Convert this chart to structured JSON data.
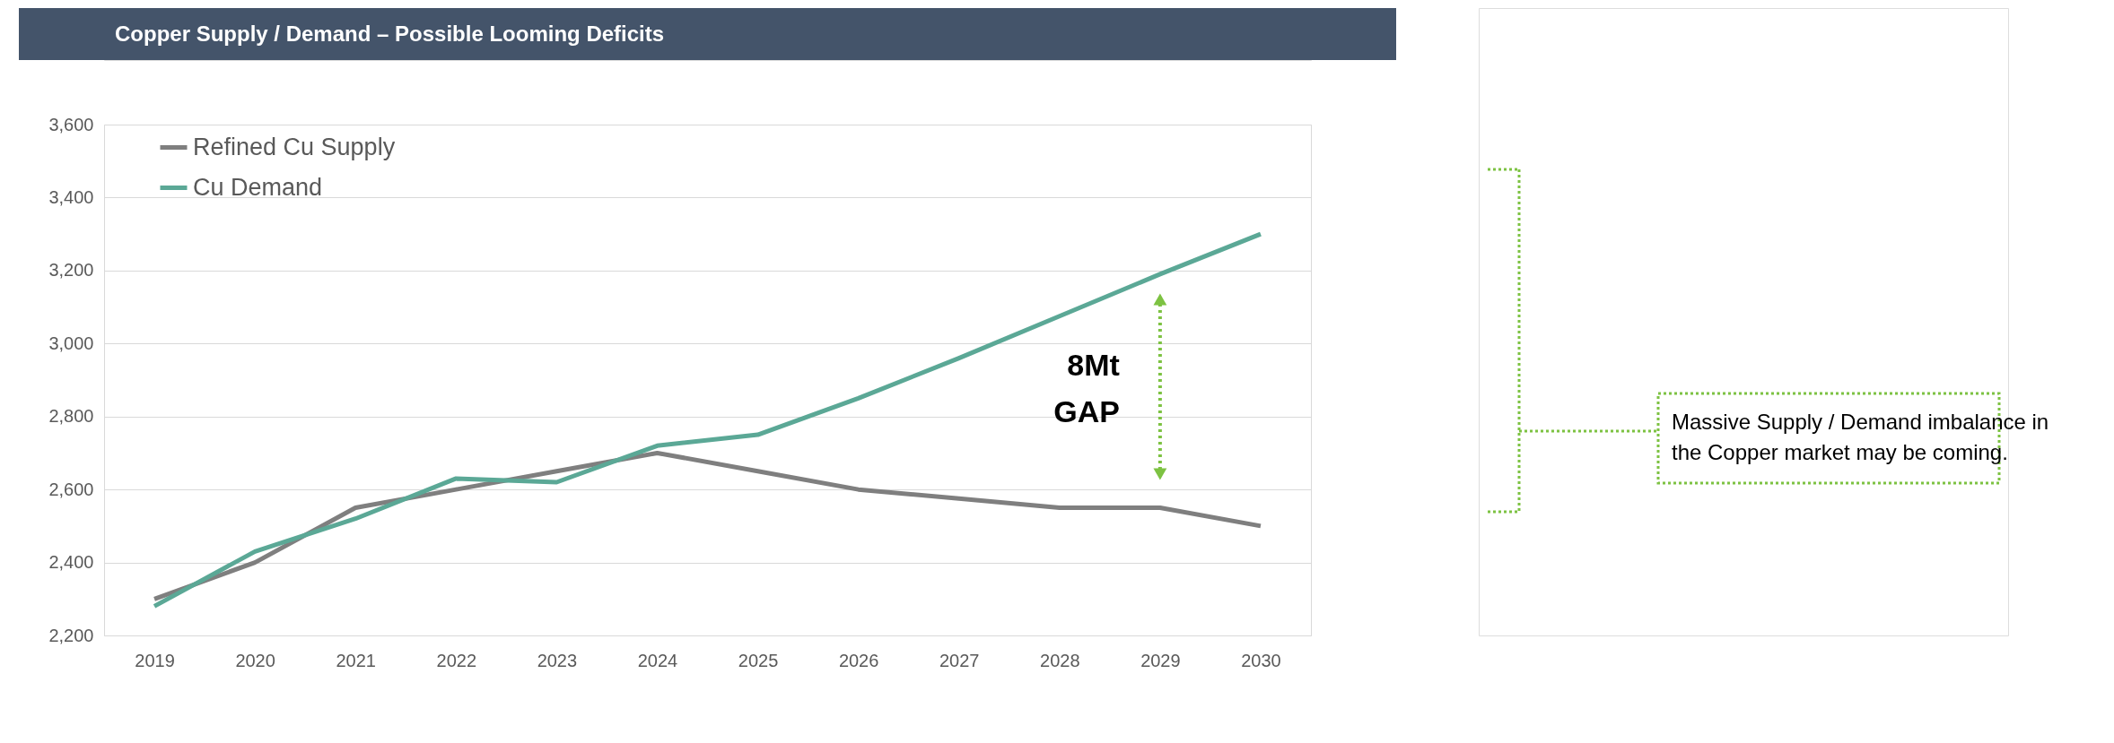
{
  "chart_data": {
    "type": "line",
    "title": "Copper Supply / Demand – Possible Looming Deficits",
    "categories": [
      "2019",
      "2020",
      "2021",
      "2022",
      "2023",
      "2024",
      "2025",
      "2026",
      "2027",
      "2028",
      "2029",
      "2030"
    ],
    "series": [
      {
        "name": "Refined Cu Supply",
        "color": "#7f7f7f",
        "values": [
          2300,
          2400,
          2550,
          2600,
          2650,
          2700,
          2650,
          2600,
          2575,
          2550,
          2550,
          2500
        ]
      },
      {
        "name": "Cu Demand",
        "color": "#5ba896",
        "values": [
          2280,
          2430,
          2520,
          2630,
          2620,
          2720,
          2750,
          2850,
          2960,
          3075,
          3190,
          3300
        ]
      }
    ],
    "ylim": [
      2200,
      3600
    ],
    "yticks": [
      {
        "value": 2200,
        "label": "2,200"
      },
      {
        "value": 2400,
        "label": "2,400"
      },
      {
        "value": 2600,
        "label": "2,600"
      },
      {
        "value": 2800,
        "label": "2,800"
      },
      {
        "value": 3000,
        "label": "3,000"
      },
      {
        "value": 3200,
        "label": "3,200"
      },
      {
        "value": 3400,
        "label": "3,400"
      },
      {
        "value": 3600,
        "label": "3,600"
      }
    ],
    "grid": "y",
    "legend": "top left",
    "marker": "none",
    "line_style": "solid",
    "annotations": [
      "8Mt GAP",
      "Massive Supply / Demand imbalance in the Copper market may be coming."
    ]
  }
}
